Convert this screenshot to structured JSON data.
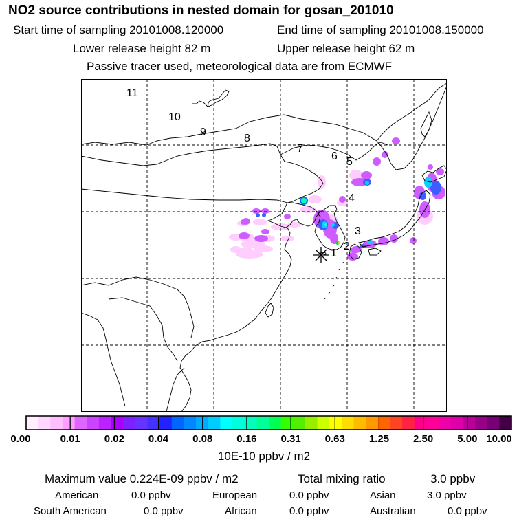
{
  "header": {
    "title": "NO2 source contributions in nested domain for gosan_201010",
    "start_label": "Start time of sampling 20101008.120000",
    "end_label": "End time of sampling 20101008.150000",
    "lower_label": "Lower release height   82 m",
    "upper_label": "Upper release height   62 m",
    "tracer_note": "Passive tracer used, meteorological data are from ECMWF"
  },
  "map": {
    "receptor_marker": "asterisk-icon",
    "trajectory_labels": [
      "1",
      "2",
      "3",
      "4",
      "5",
      "6",
      "7",
      "8",
      "9",
      "10",
      "11"
    ]
  },
  "colorbar": {
    "colors": [
      "#fff0ff",
      "#ffd8ff",
      "#ffbfff",
      "#ff9fff",
      "#dd66ff",
      "#cc44ff",
      "#bb22ff",
      "#aa00ff",
      "#7a22ff",
      "#6633ff",
      "#4433ff",
      "#2222ff",
      "#0066ff",
      "#0088ff",
      "#00aaff",
      "#00ccff",
      "#00ffff",
      "#00ffdd",
      "#00ffbb",
      "#00ff99",
      "#00ff55",
      "#33ff00",
      "#55ee00",
      "#99ee00",
      "#ccff00",
      "#ffff00",
      "#ffdd00",
      "#ffbb00",
      "#ff9900",
      "#ff6600",
      "#ff4422",
      "#ff2244",
      "#ff0088",
      "#ff0099",
      "#ee00aa",
      "#dd00aa",
      "#bb0099",
      "#990088",
      "#770077",
      "#440044"
    ],
    "tick_labels": [
      "0.00",
      "0.01",
      "0.02",
      "0.04",
      "0.08",
      "0.16",
      "0.31",
      "0.63",
      "1.25",
      "2.50",
      "5.00",
      "10.00"
    ],
    "unit": "10E-10 ppbv / m2"
  },
  "summary": {
    "max_label": "Maximum value  0.224E-09 ppbv / m2",
    "total_label": "Total mixing ratio",
    "total_value": "3.0 ppbv",
    "regions": [
      {
        "name": "American",
        "value": "0.0 ppbv"
      },
      {
        "name": "European",
        "value": "0.0 ppbv"
      },
      {
        "name": "Asian",
        "value": "3.0 ppbv"
      },
      {
        "name": "South American",
        "value": "0.0 ppbv"
      },
      {
        "name": "African",
        "value": "0.0 ppbv"
      },
      {
        "name": "Australian",
        "value": "0.0 ppbv"
      }
    ]
  }
}
